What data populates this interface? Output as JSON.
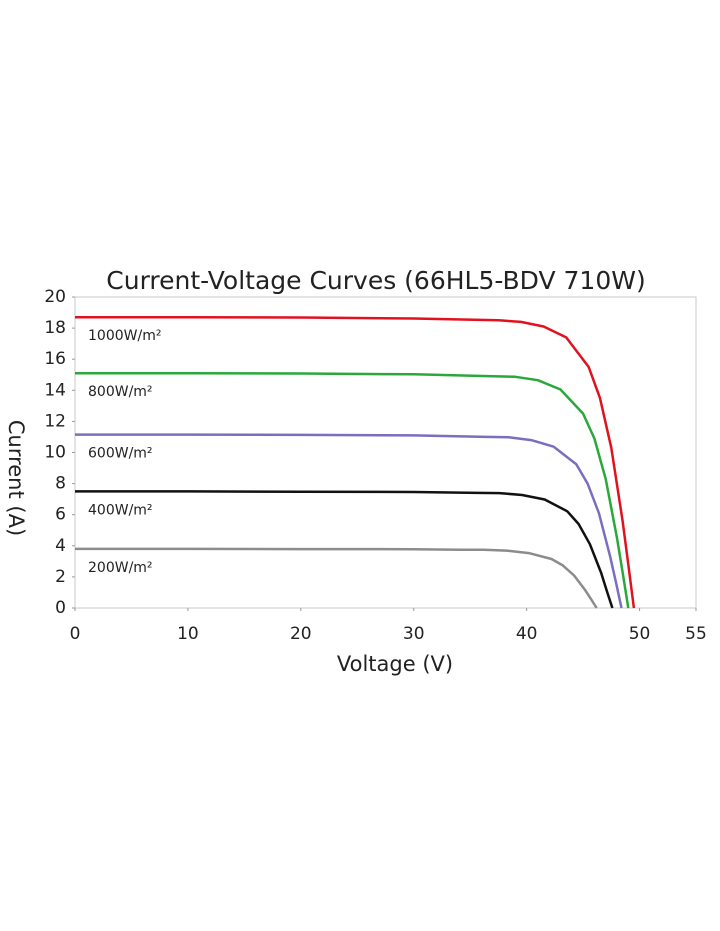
{
  "chart_data": {
    "type": "line",
    "title": "Current-Voltage Curves (66HL5-BDV 710W)",
    "x_label": "Voltage (V)",
    "y_label": "Current (A)",
    "xlim": [
      0,
      55
    ],
    "xticks": [
      0,
      10,
      20,
      30,
      40,
      50,
      55
    ],
    "ylim": [
      0,
      20
    ],
    "yticks": [
      0,
      2,
      4,
      6,
      8,
      10,
      12,
      14,
      16,
      18,
      20
    ],
    "grid": false,
    "series": [
      {
        "name": "1000W/m²",
        "color": "#e0121f",
        "x": [
          0,
          10,
          20,
          30,
          37.5,
          39.5,
          41.5,
          43.5,
          45.5,
          46.5,
          47.5,
          48.5,
          49,
          49.5
        ],
        "values": [
          18.7,
          18.7,
          18.68,
          18.62,
          18.5,
          18.4,
          18.1,
          17.4,
          15.5,
          13.5,
          10.3,
          5.6,
          2.8,
          0
        ]
      },
      {
        "name": "800W/m²",
        "color": "#2aa83a",
        "x": [
          0,
          10,
          20,
          30,
          37,
          39,
          41,
          43,
          45,
          46,
          47,
          48,
          48.5,
          49
        ],
        "values": [
          15.1,
          15.1,
          15.08,
          15.03,
          14.9,
          14.87,
          14.65,
          14.05,
          12.5,
          10.9,
          8.3,
          4.5,
          2.3,
          0
        ]
      },
      {
        "name": "600W/m²",
        "color": "#7a6fbf",
        "x": [
          0,
          10,
          20,
          30,
          36.4,
          38.4,
          40.4,
          42.4,
          44.4,
          45.4,
          46.4,
          47.4,
          47.9,
          48.4
        ],
        "values": [
          11.15,
          11.15,
          11.13,
          11.1,
          11.0,
          10.98,
          10.8,
          10.37,
          9.25,
          8.0,
          6.1,
          3.3,
          1.7,
          0
        ]
      },
      {
        "name": "400W/m²",
        "color": "#111111",
        "x": [
          0,
          10,
          20,
          30,
          35.6,
          37.6,
          39.6,
          41.6,
          43.6,
          44.6,
          45.6,
          46.6,
          47.1,
          47.6
        ],
        "values": [
          7.5,
          7.5,
          7.48,
          7.46,
          7.4,
          7.39,
          7.27,
          6.98,
          6.22,
          5.4,
          4.1,
          2.25,
          1.1,
          0
        ]
      },
      {
        "name": "200W/m²",
        "color": "#8c8c8c",
        "x": [
          0,
          10,
          20,
          30,
          34.2,
          36.2,
          38.2,
          40.2,
          42.2,
          43.2,
          44.2,
          45.2,
          45.7,
          46.2
        ],
        "values": [
          3.8,
          3.8,
          3.79,
          3.78,
          3.75,
          3.74,
          3.69,
          3.53,
          3.15,
          2.74,
          2.09,
          1.14,
          0.57,
          0
        ]
      }
    ]
  }
}
